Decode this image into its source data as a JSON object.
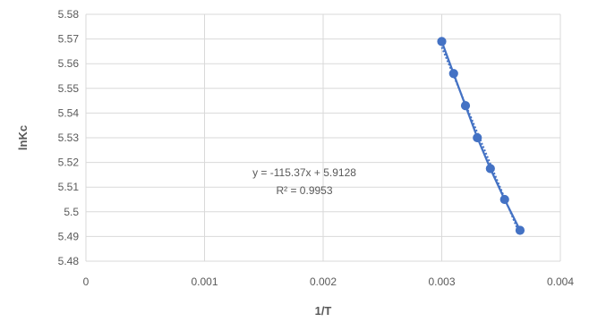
{
  "chart_data": {
    "type": "scatter",
    "xlabel": "1/T",
    "ylabel": "lnKc",
    "xlim": [
      0,
      0.004
    ],
    "ylim": [
      5.48,
      5.58
    ],
    "x_ticks": [
      "0",
      "0.001",
      "0.002",
      "0.003",
      "0.004"
    ],
    "y_ticks": [
      "5.48",
      "5.49",
      "5.5",
      "5.51",
      "5.52",
      "5.53",
      "5.54",
      "5.55",
      "5.56",
      "5.57",
      "5.58"
    ],
    "grid": true,
    "legend": "none",
    "series": [
      {
        "color": "#4472C4",
        "points": [
          {
            "x": 0.003,
            "y": 5.569
          },
          {
            "x": 0.0031,
            "y": 5.556
          },
          {
            "x": 0.0032,
            "y": 5.543
          },
          {
            "x": 0.0033,
            "y": 5.53
          },
          {
            "x": 0.00341,
            "y": 5.5175
          },
          {
            "x": 0.00353,
            "y": 5.505
          },
          {
            "x": 0.00366,
            "y": 5.4925
          }
        ]
      }
    ],
    "trendline": {
      "type": "linear",
      "slope": -115.37,
      "intercept": 5.9128,
      "color": "#4472C4",
      "equation_text": "y = -115.37x + 5.9128",
      "r2_text": "R² = 0.9953"
    }
  }
}
